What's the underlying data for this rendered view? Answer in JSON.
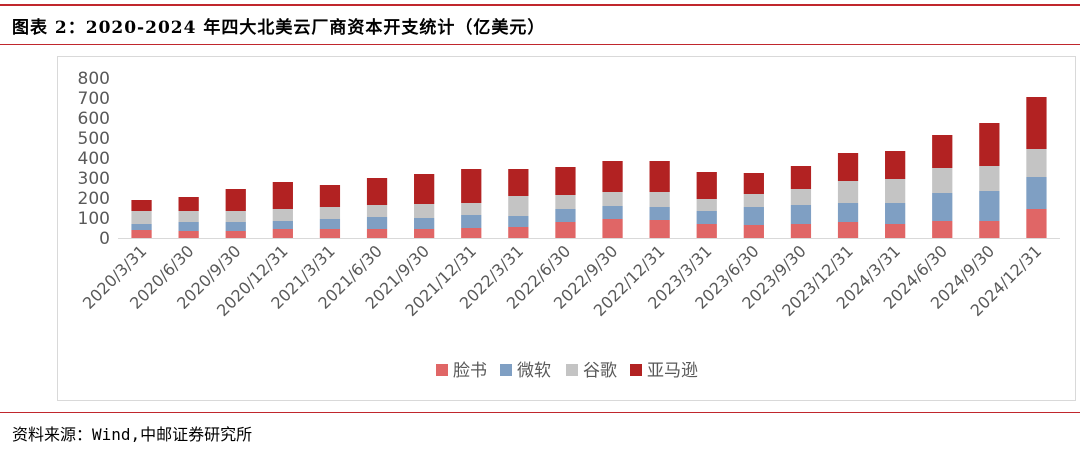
{
  "figure_title": "图表 2：2020-2024 年四大北美云厂商资本开支统计（亿美元）",
  "source": "资料来源：Wind,中邮证券研究所",
  "colors": {
    "accent": "#c0272d",
    "facebook": "#e06666",
    "microsoft": "#7f9fc3",
    "google": "#c4c4c4",
    "amazon": "#b22222"
  },
  "chart_data": {
    "type": "bar",
    "stacked": true,
    "categories": [
      "2020/3/31",
      "2020/6/30",
      "2020/9/30",
      "2020/12/31",
      "2021/3/31",
      "2021/6/30",
      "2021/9/30",
      "2021/12/31",
      "2022/3/31",
      "2022/6/30",
      "2022/9/30",
      "2022/12/31",
      "2023/3/31",
      "2023/6/30",
      "2023/9/30",
      "2023/12/31",
      "2024/3/31",
      "2024/6/30",
      "2024/9/30",
      "2024/12/31"
    ],
    "series": [
      {
        "name": "脸书",
        "color": "#e06666",
        "values": [
          40,
          35,
          35,
          45,
          45,
          45,
          45,
          50,
          55,
          80,
          95,
          90,
          70,
          65,
          70,
          80,
          70,
          85,
          85,
          145
        ]
      },
      {
        "name": "微软",
        "color": "#7f9fc3",
        "values": [
          30,
          45,
          45,
          40,
          50,
          60,
          55,
          65,
          55,
          65,
          65,
          65,
          65,
          90,
          95,
          95,
          105,
          140,
          150,
          160
        ]
      },
      {
        "name": "谷歌",
        "color": "#c4c4c4",
        "values": [
          65,
          55,
          55,
          60,
          60,
          60,
          70,
          60,
          100,
          70,
          70,
          75,
          60,
          65,
          80,
          110,
          120,
          125,
          125,
          140
        ]
      },
      {
        "name": "亚马逊",
        "color": "#b22222",
        "values": [
          55,
          70,
          110,
          135,
          110,
          135,
          150,
          170,
          135,
          140,
          155,
          155,
          135,
          105,
          115,
          140,
          140,
          165,
          215,
          260
        ]
      }
    ],
    "ylim": [
      0,
      800
    ],
    "yticks": [
      0,
      100,
      200,
      300,
      400,
      500,
      600,
      700,
      800
    ],
    "grid": false,
    "legend": "bottom"
  }
}
